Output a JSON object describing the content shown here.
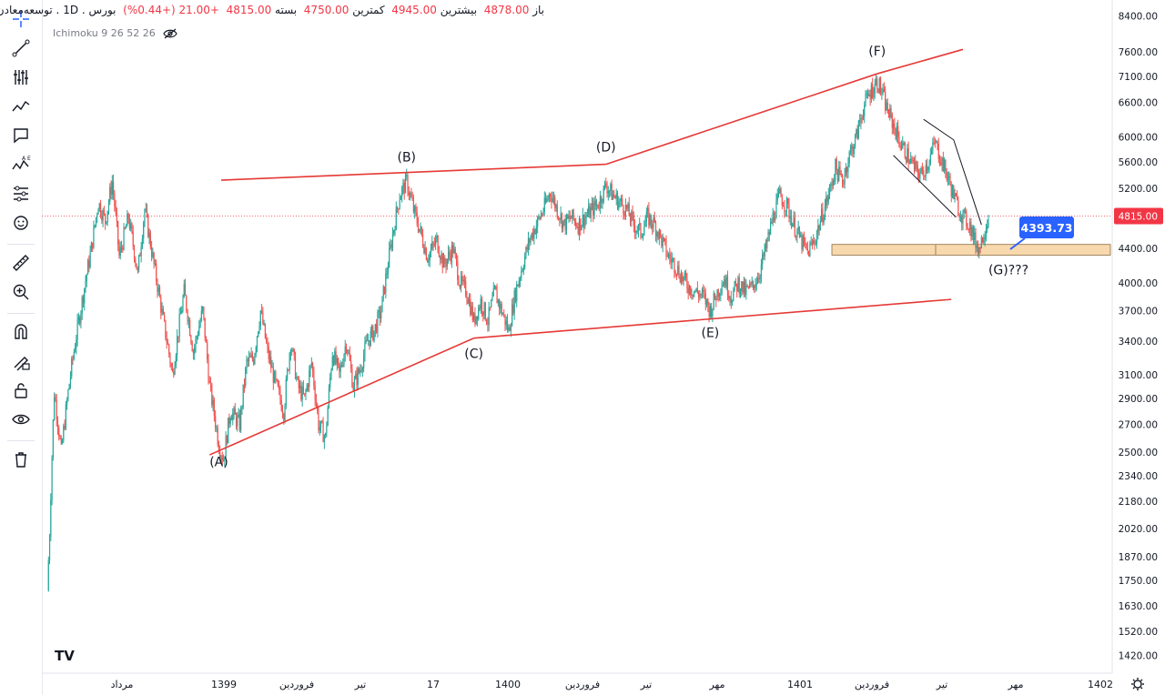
{
  "header": {
    "open_label": "باز",
    "open": "4878.00",
    "high_label": "بیشترین",
    "high": "4945.00",
    "low_label": "کمترین",
    "low": "4750.00",
    "close_label": "بسته",
    "close": "4815.00",
    "change": "+21.00 (+0.44%)",
    "symbol": "توسعه‌معادن‌وفلزات",
    "timeframe": "1D",
    "exchange": "بورس"
  },
  "indicator": {
    "label": "Ichimoku 9 26 52 26"
  },
  "logo": "TV",
  "colors": {
    "up": "#26a69a",
    "down": "#ef5350",
    "pattern": "#e53935",
    "current_price": "#f23645",
    "box": "#f5c78a",
    "callout": "#2962ff"
  },
  "chart_data": {
    "type": "candlestick",
    "y_scale": "log",
    "ylim": [
      1380,
      8600
    ],
    "y_ticks": [
      8400,
      7600,
      7100,
      6600,
      6000,
      5600,
      5200,
      4800,
      4400,
      4000,
      3700,
      3400,
      3100,
      2900,
      2700,
      2500,
      2340,
      2180,
      2020,
      1870,
      1750,
      1630,
      1520,
      1420
    ],
    "x_labels": [
      "مرداد",
      "1399",
      "فروردین",
      "تیر",
      "17",
      "1400",
      "فروردین",
      "تیر",
      "مهر",
      "1401",
      "فروردین",
      "تیر",
      "مهر",
      "1402"
    ],
    "current_price": 4815.0,
    "current_price_label": "4815.00",
    "callout_price": 4393.73,
    "callout_label": "4393.73",
    "support_zone": [
      4320,
      4450
    ],
    "pattern_points": [
      {
        "label": "(A)",
        "price": 2540
      },
      {
        "label": "(B)",
        "price": 5380
      },
      {
        "label": "(C)",
        "price": 3430
      },
      {
        "label": "(D)",
        "price": 5560
      },
      {
        "label": "(E)",
        "price": 3600
      },
      {
        "label": "(F)",
        "price": 7150
      },
      {
        "label": "(G)???",
        "price": 4330
      }
    ],
    "price_path": [
      [
        0,
        1700
      ],
      [
        2,
        2000
      ],
      [
        6,
        2950
      ],
      [
        12,
        2500
      ],
      [
        20,
        3100
      ],
      [
        30,
        3800
      ],
      [
        38,
        4400
      ],
      [
        44,
        5000
      ],
      [
        50,
        4750
      ],
      [
        56,
        5300
      ],
      [
        62,
        4300
      ],
      [
        70,
        4800
      ],
      [
        78,
        4100
      ],
      [
        84,
        4900
      ],
      [
        92,
        4200
      ],
      [
        100,
        3600
      ],
      [
        108,
        3100
      ],
      [
        118,
        3900
      ],
      [
        126,
        3300
      ],
      [
        134,
        3700
      ],
      [
        140,
        3000
      ],
      [
        148,
        2550
      ],
      [
        152,
        2450
      ],
      [
        158,
        2800
      ],
      [
        166,
        2700
      ],
      [
        172,
        3200
      ],
      [
        178,
        3250
      ],
      [
        184,
        3700
      ],
      [
        190,
        3300
      ],
      [
        196,
        3050
      ],
      [
        204,
        2800
      ],
      [
        210,
        3400
      ],
      [
        216,
        3000
      ],
      [
        222,
        2900
      ],
      [
        228,
        3200
      ],
      [
        234,
        2700
      ],
      [
        240,
        2600
      ],
      [
        246,
        3300
      ],
      [
        252,
        3100
      ],
      [
        258,
        3400
      ],
      [
        264,
        3000
      ],
      [
        270,
        3150
      ],
      [
        276,
        3400
      ],
      [
        282,
        3500
      ],
      [
        288,
        3700
      ],
      [
        296,
        4400
      ],
      [
        304,
        5100
      ],
      [
        310,
        5300
      ],
      [
        316,
        4900
      ],
      [
        322,
        4600
      ],
      [
        328,
        4300
      ],
      [
        336,
        4500
      ],
      [
        342,
        4200
      ],
      [
        350,
        4400
      ],
      [
        356,
        4000
      ],
      [
        362,
        3900
      ],
      [
        368,
        3600
      ],
      [
        374,
        3800
      ],
      [
        380,
        3600
      ],
      [
        386,
        3900
      ],
      [
        392,
        3700
      ],
      [
        398,
        3500
      ],
      [
        404,
        3900
      ],
      [
        410,
        4200
      ],
      [
        416,
        4500
      ],
      [
        422,
        4700
      ],
      [
        428,
        4900
      ],
      [
        434,
        5150
      ],
      [
        440,
        4900
      ],
      [
        446,
        4700
      ],
      [
        452,
        4800
      ],
      [
        458,
        4700
      ],
      [
        464,
        4800
      ],
      [
        470,
        4900
      ],
      [
        476,
        5000
      ],
      [
        482,
        5250
      ],
      [
        488,
        5100
      ],
      [
        494,
        5000
      ],
      [
        500,
        4900
      ],
      [
        506,
        4700
      ],
      [
        512,
        4600
      ],
      [
        518,
        4800
      ],
      [
        524,
        4700
      ],
      [
        530,
        4500
      ],
      [
        536,
        4300
      ],
      [
        542,
        4200
      ],
      [
        548,
        4050
      ],
      [
        554,
        3950
      ],
      [
        560,
        3900
      ],
      [
        566,
        3850
      ],
      [
        572,
        3700
      ],
      [
        578,
        3900
      ],
      [
        584,
        4050
      ],
      [
        590,
        3850
      ],
      [
        596,
        4000
      ],
      [
        602,
        3900
      ],
      [
        608,
        3950
      ],
      [
        614,
        4100
      ],
      [
        620,
        4400
      ],
      [
        626,
        4800
      ],
      [
        632,
        5100
      ],
      [
        638,
        4950
      ],
      [
        644,
        4700
      ],
      [
        650,
        4500
      ],
      [
        656,
        4350
      ],
      [
        662,
        4500
      ],
      [
        668,
        4800
      ],
      [
        674,
        5100
      ],
      [
        680,
        5500
      ],
      [
        686,
        5300
      ],
      [
        692,
        5700
      ],
      [
        698,
        6000
      ],
      [
        704,
        6500
      ],
      [
        710,
        6800
      ],
      [
        716,
        7000
      ],
      [
        720,
        6800
      ],
      [
        724,
        6500
      ],
      [
        730,
        6200
      ],
      [
        736,
        5900
      ],
      [
        742,
        5700
      ],
      [
        748,
        5500
      ],
      [
        754,
        5400
      ],
      [
        760,
        5600
      ],
      [
        766,
        5900
      ],
      [
        772,
        5600
      ],
      [
        778,
        5300
      ],
      [
        784,
        5000
      ],
      [
        790,
        4800
      ],
      [
        796,
        4700
      ],
      [
        800,
        4500
      ],
      [
        804,
        4400
      ],
      [
        808,
        4600
      ],
      [
        812,
        4815
      ]
    ]
  }
}
